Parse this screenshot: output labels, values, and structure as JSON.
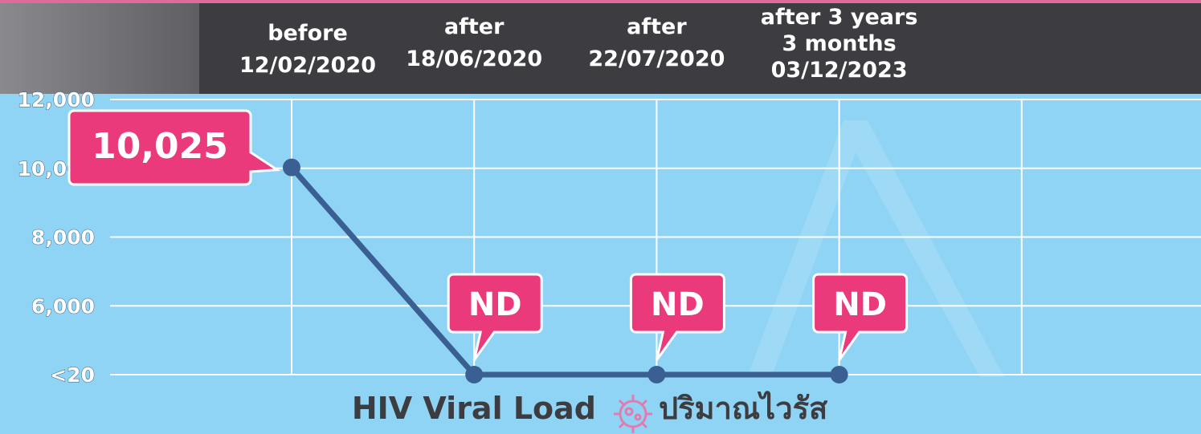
{
  "chart_data": {
    "type": "line",
    "title": "HIV Viral Load",
    "subtitle": "ปริมาณไวรัส",
    "categories": [
      [
        "before",
        "12/02/2020"
      ],
      [
        "after",
        "18/06/2020"
      ],
      [
        "after",
        "22/07/2020"
      ],
      [
        "after 3 years",
        "3 months",
        "03/12/2023"
      ]
    ],
    "values": [
      10025,
      20,
      20,
      20
    ],
    "value_labels": [
      "10,025",
      "ND",
      "ND",
      "ND"
    ],
    "color": "#3a5f93",
    "label_color": "#ea3a7c",
    "ylim": [
      20,
      12000
    ],
    "yticks": [
      {
        "value": 20,
        "label": "<20"
      },
      {
        "value": 6000,
        "label": "6,000"
      },
      {
        "value": 8000,
        "label": "8,000"
      },
      {
        "value": 10000,
        "label": "10,000"
      },
      {
        "value": 12000,
        "label": "12,000"
      }
    ],
    "axis_break": true,
    "grid": true
  }
}
